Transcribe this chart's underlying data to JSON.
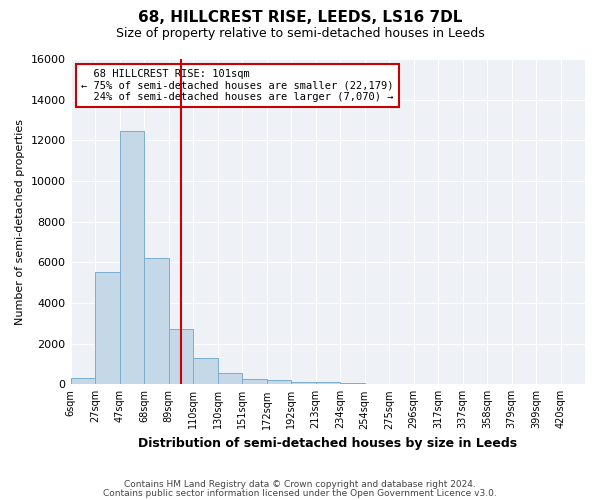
{
  "title": "68, HILLCREST RISE, LEEDS, LS16 7DL",
  "subtitle": "Size of property relative to semi-detached houses in Leeds",
  "xlabel": "Distribution of semi-detached houses by size in Leeds",
  "ylabel": "Number of semi-detached properties",
  "property_label": "68 HILLCREST RISE: 101sqm",
  "smaller_pct": 75,
  "smaller_count": "22,179",
  "larger_pct": 24,
  "larger_count": "7,070",
  "bin_labels": [
    "6sqm",
    "27sqm",
    "47sqm",
    "68sqm",
    "89sqm",
    "110sqm",
    "130sqm",
    "151sqm",
    "172sqm",
    "192sqm",
    "213sqm",
    "234sqm",
    "254sqm",
    "275sqm",
    "296sqm",
    "317sqm",
    "337sqm",
    "358sqm",
    "379sqm",
    "399sqm",
    "420sqm"
  ],
  "bar_values": [
    300,
    5500,
    12450,
    6200,
    2700,
    1300,
    550,
    280,
    200,
    130,
    100,
    60,
    30,
    15,
    10,
    5,
    3,
    2,
    1,
    1
  ],
  "bar_color": "#c5d8e8",
  "bar_edge_color": "#7aaecf",
  "vline_color": "#cc0000",
  "vline_x": 4.52,
  "annotation_box_color": "#cc0000",
  "ylim": [
    0,
    16000
  ],
  "yticks": [
    0,
    2000,
    4000,
    6000,
    8000,
    10000,
    12000,
    14000,
    16000
  ],
  "footer_line1": "Contains HM Land Registry data © Crown copyright and database right 2024.",
  "footer_line2": "Contains public sector information licensed under the Open Government Licence v3.0.",
  "plot_bg_color": "#eef2f7"
}
